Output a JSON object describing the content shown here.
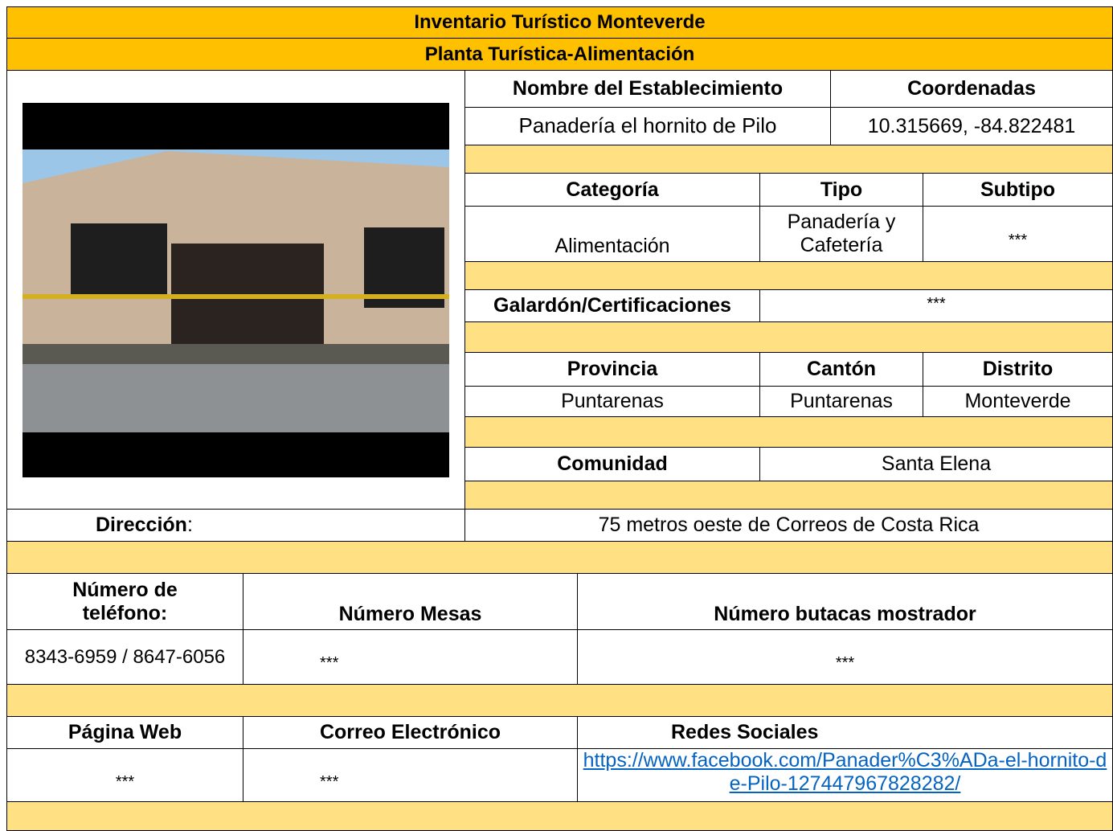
{
  "header": {
    "title": "Inventario Turístico Monteverde",
    "subtitle": "Planta Turística-Alimentación"
  },
  "establecimiento": {
    "label": "Nombre del Establecimiento",
    "value": "Panadería el hornito de Pilo"
  },
  "coordenadas": {
    "label": "Coordenadas",
    "value": "10.315669, -84.822481"
  },
  "categoria": {
    "label": "Categoría",
    "value": "Alimentación"
  },
  "tipo": {
    "label": "Tipo",
    "value": "Panadería y Cafetería"
  },
  "subtipo": {
    "label": "Subtipo",
    "value": "***"
  },
  "galardon": {
    "label": "Galardón/Certificaciones",
    "value": "***"
  },
  "provincia": {
    "label": "Provincia",
    "value": "Puntarenas"
  },
  "canton": {
    "label": "Cantón",
    "value": "Puntarenas"
  },
  "distrito": {
    "label": "Distrito",
    "value": "Monteverde"
  },
  "comunidad": {
    "label": "Comunidad",
    "value": "Santa Elena"
  },
  "direccion": {
    "label": "Dirección",
    "suffix": ":",
    "value": "75 metros oeste de Correos de Costa Rica"
  },
  "telefono": {
    "label": "Número de teléfono:",
    "value": "8343-6959 / 8647-6056"
  },
  "mesas": {
    "label": "Número Mesas",
    "value": "***"
  },
  "butacas": {
    "label": "Número butacas mostrador",
    "value": "***"
  },
  "web": {
    "label": "Página Web",
    "value": "***"
  },
  "correo": {
    "label": "Correo Electrónico",
    "value": "***"
  },
  "redes": {
    "label": "Redes Sociales",
    "value": "https://www.facebook.com/Panader%C3%ADa-el-hornito-de-Pilo-127447967828282/"
  }
}
